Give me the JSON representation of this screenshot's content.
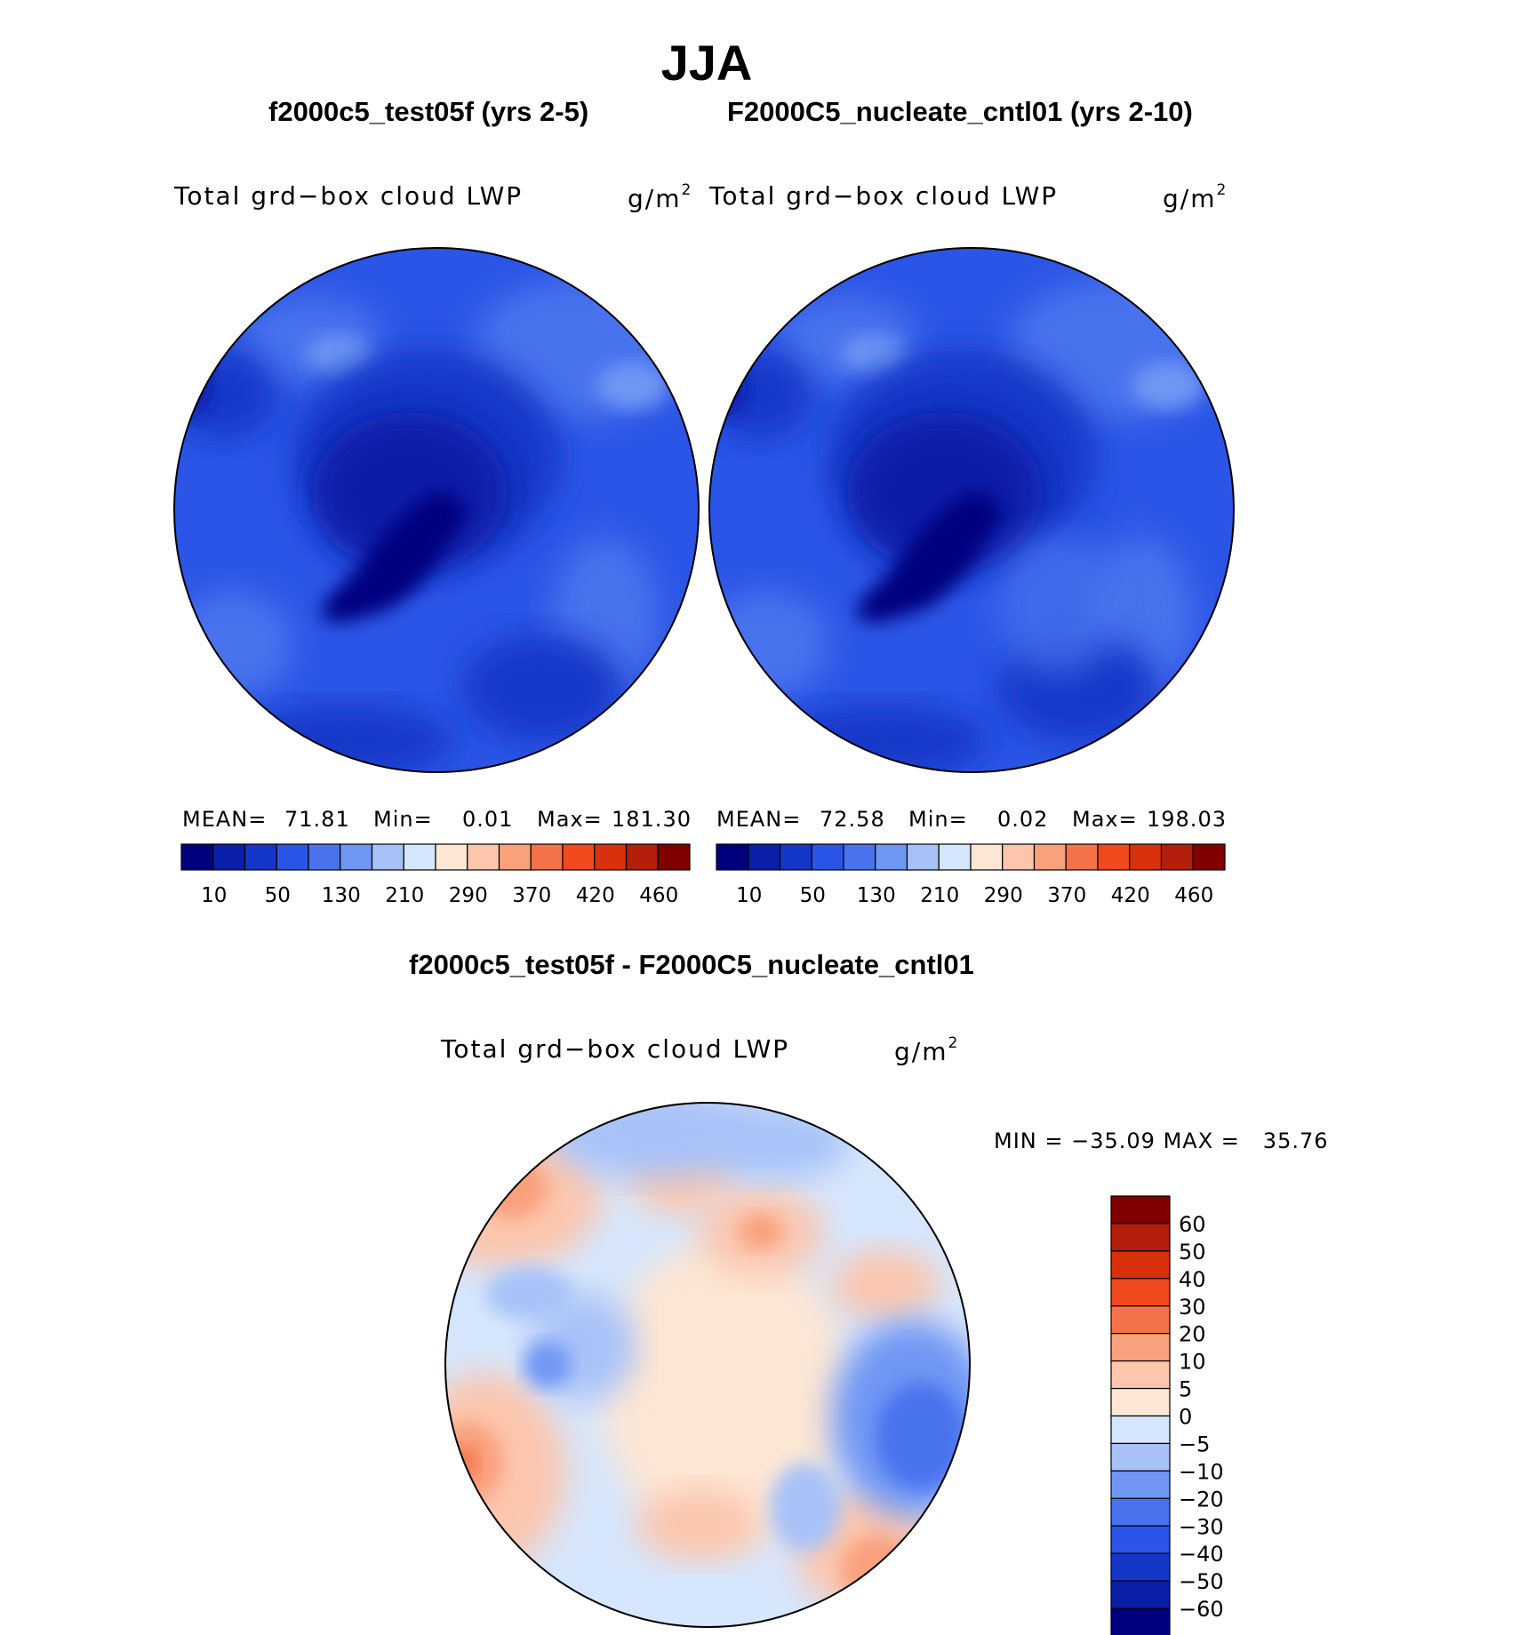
{
  "figure": {
    "season": "JJA"
  },
  "panels": [
    {
      "title": "f2000c5_test05f (yrs 2-5)",
      "variable": "Total grd−box cloud LWP",
      "units": "g/m",
      "units_exp": "2",
      "stats": {
        "mean_label": "MEAN=",
        "mean": "71.81",
        "min_label": "Min=",
        "min": "0.01",
        "max_label": "Max=",
        "max": "181.30"
      }
    },
    {
      "title": "F2000C5_nucleate_cntl01 (yrs 2-10)",
      "variable": "Total grd−box cloud LWP",
      "units": "g/m",
      "units_exp": "2",
      "stats": {
        "mean_label": "MEAN=",
        "mean": "72.58",
        "min_label": "Min=",
        "min": "0.02",
        "max_label": "Max=",
        "max": "198.03"
      }
    }
  ],
  "abs_colorbar": {
    "labels": [
      "10",
      "50",
      "130",
      "210",
      "290",
      "370",
      "420",
      "460"
    ],
    "colors": [
      "#00007f",
      "#0a1fa8",
      "#1537c8",
      "#2b55e6",
      "#4a72ee",
      "#7096f4",
      "#a8c2f8",
      "#d6e6fc",
      "#fde6d4",
      "#fcc6ad",
      "#f9a07d",
      "#f57249",
      "#f04a1e",
      "#d9300c",
      "#b31f0a",
      "#800000"
    ]
  },
  "difference": {
    "title": "f2000c5_test05f - F2000C5_nucleate_cntl01",
    "variable": "Total grd−box cloud LWP",
    "units": "g/m",
    "units_exp": "2",
    "min_label": "MIN =",
    "min": "−35.09",
    "max_label": "MAX =",
    "max": "35.76",
    "colorbar": {
      "labels": [
        "60",
        "50",
        "40",
        "30",
        "20",
        "10",
        "5",
        "0",
        "−5",
        "−10",
        "−20",
        "−30",
        "−40",
        "−50",
        "−60"
      ],
      "colors": [
        "#800000",
        "#b31f0a",
        "#d9300c",
        "#f04a1e",
        "#f57249",
        "#f9a07d",
        "#fcc6ad",
        "#fde6d4",
        "#d6e6fc",
        "#a8c2f8",
        "#7096f4",
        "#4a72ee",
        "#2b55e6",
        "#1537c8",
        "#0a1fa8",
        "#00007f"
      ]
    }
  },
  "map_colors": {
    "outline": "#000000",
    "base_blue": "#2b55e6",
    "mid_blue": "#4a72ee",
    "light_blue": "#7096f4",
    "dark_blue": "#1537c8",
    "darker_blue": "#0a1fa8",
    "darkest_blue": "#00007f",
    "diff_neutral_pos": "#fde6d4",
    "diff_neutral_neg": "#d6e6fc",
    "diff_salmon": "#fcc6ad",
    "diff_orange": "#f9a07d",
    "diff_red": "#f57249",
    "diff_lightblue": "#a8c2f8",
    "diff_blue": "#7096f4"
  }
}
